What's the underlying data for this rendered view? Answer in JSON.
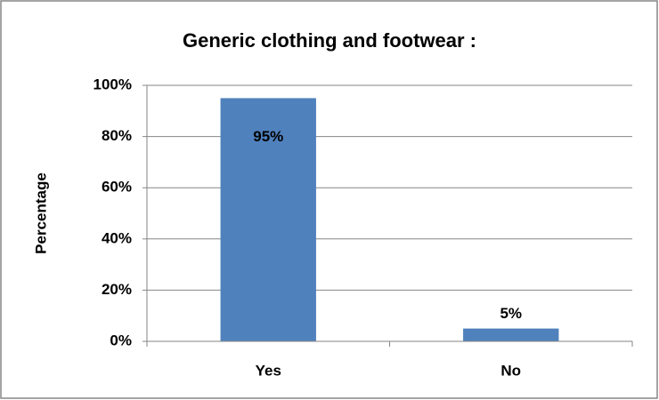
{
  "chart_data": {
    "type": "bar",
    "title": "Generic clothing and footwear :",
    "ylabel": "Percentage",
    "categories": [
      "Yes",
      "No"
    ],
    "values": [
      95,
      5
    ],
    "value_labels": [
      "95%",
      "5%"
    ],
    "color": "#4f81bd",
    "ylim": [
      0,
      100
    ],
    "yticks": [
      {
        "value": 0,
        "label": "0%"
      },
      {
        "value": 20,
        "label": "20%"
      },
      {
        "value": 40,
        "label": "40%"
      },
      {
        "value": 60,
        "label": "60%"
      },
      {
        "value": 80,
        "label": "80%"
      },
      {
        "value": 100,
        "label": "100%"
      }
    ],
    "grid": true
  }
}
